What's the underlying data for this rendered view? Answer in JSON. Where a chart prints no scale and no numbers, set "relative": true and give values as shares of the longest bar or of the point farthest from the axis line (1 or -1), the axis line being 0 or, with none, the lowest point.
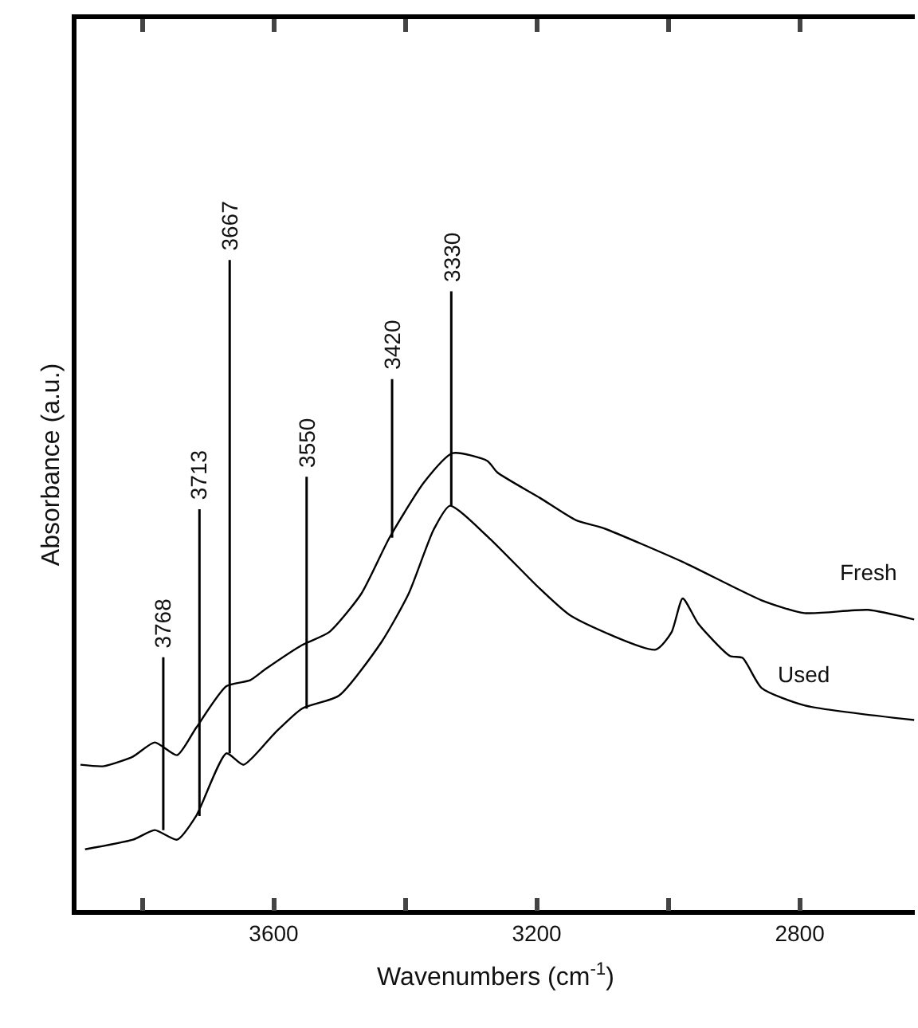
{
  "chart_data": {
    "type": "line",
    "relative": true,
    "xlabel": "Wavenumbers (cm$^{-1}$)",
    "ylabel": "Absorbance (a.u.)",
    "xlim": [
      3900,
      2625
    ],
    "xticks": [
      {
        "value": 3800,
        "label": null
      },
      3600,
      {
        "value": 3400,
        "label": null
      },
      3200,
      {
        "value": 3000,
        "label": null
      },
      2800
    ],
    "legend": false,
    "marker": "none",
    "line_style": "solid",
    "series": [
      {
        "name": "Fresh",
        "color": "#000000",
        "x": [
          3894,
          3858,
          3814,
          3781,
          3747,
          3718,
          3672,
          3636,
          3612,
          3557,
          3516,
          3467,
          3424,
          3371,
          3328,
          3275,
          3260,
          3195,
          3140,
          3099,
          2978,
          2858,
          2793,
          2696,
          2626
        ],
        "values": [
          0.318,
          0.315,
          0.336,
          0.367,
          0.339,
          0.399,
          0.49,
          0.503,
          0.528,
          0.58,
          0.608,
          0.692,
          0.815,
          0.937,
          1.0,
          0.983,
          0.958,
          0.902,
          0.853,
          0.836,
          0.762,
          0.678,
          0.65,
          0.657,
          0.636
        ]
      },
      {
        "name": "Used",
        "color": "#000000",
        "x": [
          3887,
          3814,
          3781,
          3747,
          3718,
          3672,
          3646,
          3598,
          3557,
          3501,
          3436,
          3395,
          3357,
          3332,
          3275,
          3195,
          3147,
          3019,
          2995,
          2978,
          2954,
          2906,
          2887,
          2858,
          2793,
          2626
        ],
        "values": [
          0.133,
          0.154,
          0.175,
          0.154,
          0.206,
          0.343,
          0.318,
          0.388,
          0.441,
          0.469,
          0.587,
          0.692,
          0.832,
          0.885,
          0.818,
          0.703,
          0.643,
          0.57,
          0.608,
          0.682,
          0.626,
          0.556,
          0.552,
          0.486,
          0.448,
          0.416
        ]
      }
    ],
    "annotations": [
      {
        "text": "3768",
        "x": 3768,
        "y": 0.175
      },
      {
        "text": "3713",
        "x": 3713,
        "y": 0.206
      },
      {
        "text": "3667",
        "x": 3667,
        "y": 0.343
      },
      {
        "text": "3550",
        "x": 3550,
        "y": 0.441
      },
      {
        "text": "3420",
        "x": 3420,
        "y": 0.815
      },
      {
        "text": "3330",
        "x": 3330,
        "y": 0.885
      }
    ]
  }
}
